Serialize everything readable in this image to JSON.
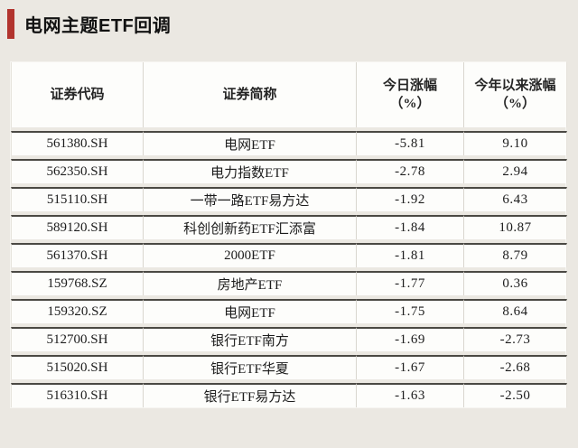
{
  "title": "电网主题ETF回调",
  "colors": {
    "accent_red": "#b2342e",
    "page_background": "#ebe8e2",
    "cell_background": "#fdfdfb",
    "separator_dark": "#4b4944"
  },
  "table": {
    "columns": [
      {
        "line1": "证券代码",
        "line2": ""
      },
      {
        "line1": "证券简称",
        "line2": ""
      },
      {
        "line1": "今日涨幅",
        "line2": "（%）"
      },
      {
        "line1": "今年以来涨幅",
        "line2": "（%）"
      }
    ],
    "rows": [
      {
        "code": "561380.SH",
        "name": "电网ETF",
        "today": "-5.81",
        "ytd": "9.10"
      },
      {
        "code": "562350.SH",
        "name": "电力指数ETF",
        "today": "-2.78",
        "ytd": "2.94"
      },
      {
        "code": "515110.SH",
        "name": "一带一路ETF易方达",
        "today": "-1.92",
        "ytd": "6.43"
      },
      {
        "code": "589120.SH",
        "name": "科创创新药ETF汇添富",
        "today": "-1.84",
        "ytd": "10.87"
      },
      {
        "code": "561370.SH",
        "name": "2000ETF",
        "today": "-1.81",
        "ytd": "8.79"
      },
      {
        "code": "159768.SZ",
        "name": "房地产ETF",
        "today": "-1.77",
        "ytd": "0.36"
      },
      {
        "code": "159320.SZ",
        "name": "电网ETF",
        "today": "-1.75",
        "ytd": "8.64"
      },
      {
        "code": "512700.SH",
        "name": "银行ETF南方",
        "today": "-1.69",
        "ytd": "-2.73"
      },
      {
        "code": "515020.SH",
        "name": "银行ETF华夏",
        "today": "-1.67",
        "ytd": "-2.68"
      },
      {
        "code": "516310.SH",
        "name": "银行ETF易方达",
        "today": "-1.63",
        "ytd": "-2.50"
      }
    ]
  }
}
